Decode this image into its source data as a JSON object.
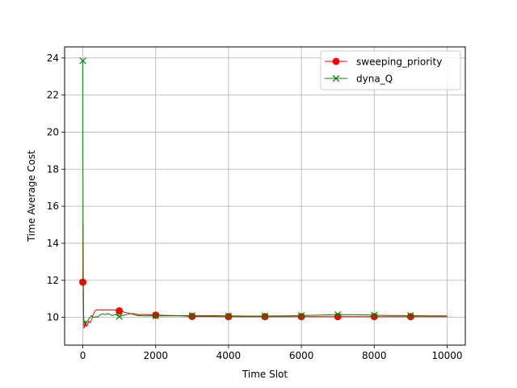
{
  "chart_data": {
    "type": "line",
    "title": "",
    "xlabel": "Time Slot",
    "ylabel": "Time Average Cost",
    "xlim": [
      -500,
      10500
    ],
    "ylim": [
      8.5,
      24.6
    ],
    "xticks": [
      0,
      2000,
      4000,
      6000,
      8000,
      10000
    ],
    "yticks": [
      10,
      12,
      14,
      16,
      18,
      20,
      22,
      24
    ],
    "grid": true,
    "legend_position": "upper right",
    "series": [
      {
        "name": "sweeping_priority",
        "color": "#ff0000",
        "marker": "circle",
        "x": [
          0,
          5,
          10,
          20,
          30,
          45,
          60,
          80,
          100,
          130,
          160,
          200,
          240,
          280,
          320,
          360,
          400,
          450,
          500,
          600,
          700,
          800,
          900,
          1000,
          1100,
          1200,
          1300,
          1400,
          1500,
          1700,
          2000,
          2500,
          3000,
          3500,
          4000,
          4500,
          5000,
          5500,
          6000,
          6500,
          7000,
          7500,
          8000,
          8500,
          9000,
          9500,
          10000
        ],
        "y": [
          11.9,
          15.0,
          12.5,
          10.3,
          9.4,
          9.6,
          9.5,
          9.7,
          9.5,
          9.6,
          9.8,
          9.7,
          9.9,
          10.1,
          10.3,
          10.4,
          10.4,
          10.4,
          10.4,
          10.4,
          10.4,
          10.4,
          10.4,
          10.35,
          10.3,
          10.25,
          10.2,
          10.2,
          10.15,
          10.15,
          10.12,
          10.1,
          10.05,
          10.05,
          10.04,
          10.04,
          10.04,
          10.04,
          10.04,
          10.04,
          10.04,
          10.04,
          10.04,
          10.04,
          10.04,
          10.04,
          10.04
        ],
        "marker_x": [
          0,
          1000,
          2000,
          3000,
          4000,
          5000,
          6000,
          7000,
          8000,
          9000
        ],
        "marker_y": [
          11.9,
          10.35,
          10.12,
          10.05,
          10.04,
          10.04,
          10.04,
          10.04,
          10.04,
          10.04
        ]
      },
      {
        "name": "dyna_Q",
        "color": "#008000",
        "marker": "x",
        "x": [
          0,
          5,
          10,
          20,
          30,
          45,
          60,
          80,
          100,
          130,
          160,
          200,
          240,
          280,
          320,
          360,
          400,
          450,
          500,
          550,
          600,
          700,
          800,
          900,
          1000,
          1100,
          1200,
          1300,
          1400,
          1500,
          1700,
          2000,
          2500,
          3000,
          3500,
          4000,
          4500,
          5000,
          5500,
          6000,
          6500,
          7000,
          7500,
          8000,
          8500,
          9000,
          9500,
          10000
        ],
        "y": [
          23.85,
          16.0,
          12.0,
          10.2,
          9.7,
          9.8,
          9.6,
          9.8,
          9.7,
          9.8,
          9.9,
          10.0,
          10.1,
          10.0,
          10.0,
          10.05,
          10.0,
          10.1,
          10.15,
          10.2,
          10.15,
          10.2,
          10.1,
          10.15,
          10.05,
          10.1,
          10.15,
          10.2,
          10.15,
          10.1,
          10.08,
          10.08,
          10.08,
          10.1,
          10.1,
          10.08,
          10.07,
          10.07,
          10.08,
          10.1,
          10.12,
          10.15,
          10.14,
          10.12,
          10.1,
          10.1,
          10.08,
          10.08
        ],
        "marker_x": [
          0,
          1000,
          2000,
          3000,
          4000,
          5000,
          6000,
          7000,
          8000,
          9000
        ],
        "marker_y": [
          23.85,
          10.05,
          10.08,
          10.1,
          10.08,
          10.07,
          10.1,
          10.15,
          10.12,
          10.1
        ]
      }
    ]
  }
}
